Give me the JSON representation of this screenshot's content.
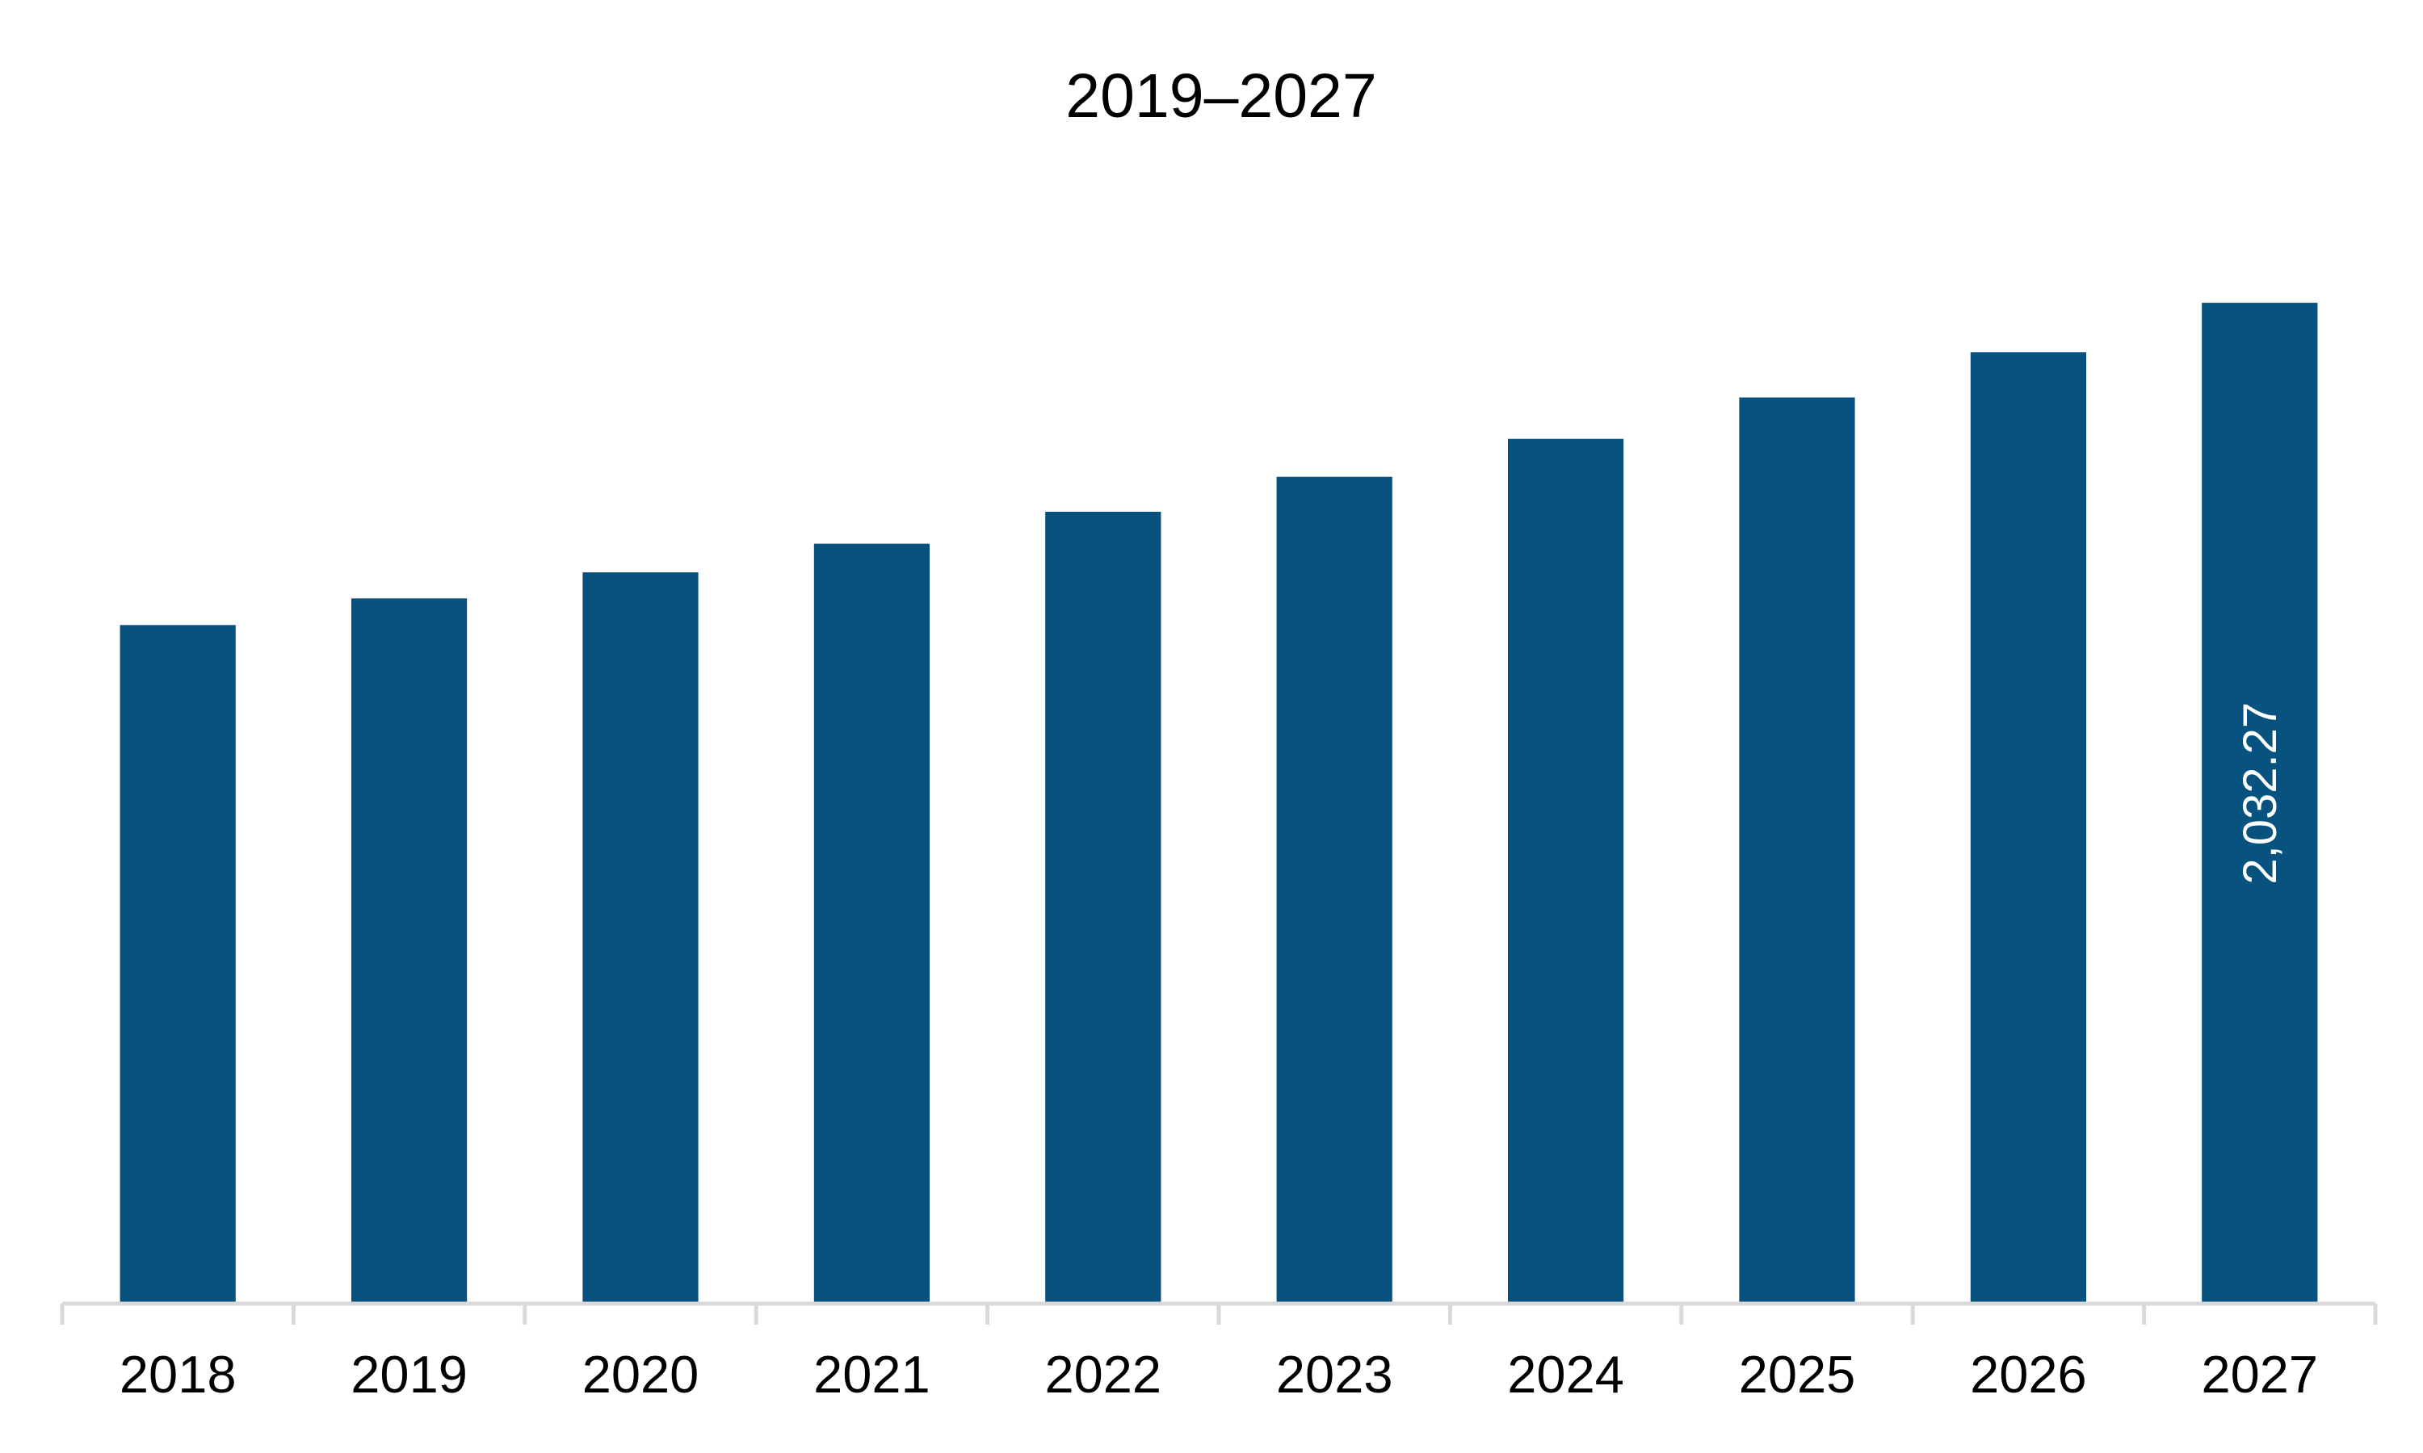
{
  "chart_data": {
    "type": "bar",
    "title": "2019–2027",
    "xlabel": "",
    "ylabel": "",
    "categories": [
      "2018",
      "2019",
      "2020",
      "2021",
      "2022",
      "2023",
      "2024",
      "2025",
      "2026",
      "2027"
    ],
    "values": [
      1378,
      1432,
      1485,
      1543,
      1608,
      1679,
      1756,
      1840,
      1932,
      2032.27
    ],
    "data_labels": [
      "",
      "",
      "",
      "",
      "",
      "",
      "",
      "",
      "",
      "2,032.27"
    ],
    "ylim": [
      0,
      2180
    ],
    "grid": false,
    "legend": "none",
    "colors": {
      "bar": "#08527F",
      "axis": "#D9D9D9",
      "data_label": "#FFFFFF",
      "text": "#000000"
    }
  }
}
